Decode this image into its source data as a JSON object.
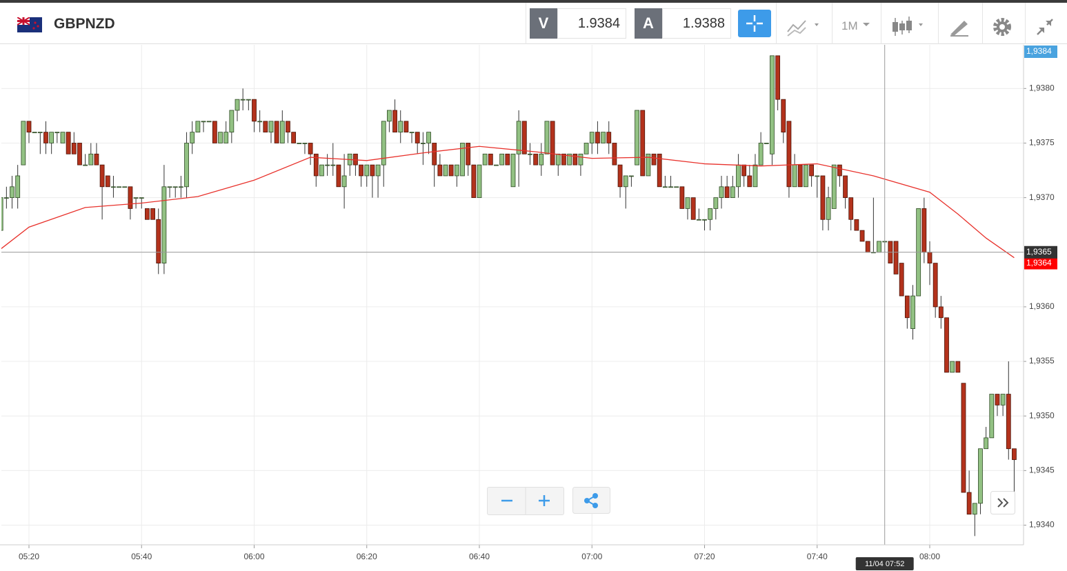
{
  "toolbar": {
    "symbol": "GBPNZD",
    "bid_label": "V",
    "bid": "1.9384",
    "ask_label": "A",
    "ask": "1.9388",
    "timeframe": "1M"
  },
  "chart_data": {
    "type": "candlestick",
    "x": [
      "05:15",
      "05:16",
      "05:17",
      "05:18",
      "05:19",
      "05:20",
      "05:21",
      "05:22",
      "05:23",
      "05:24",
      "05:25",
      "05:26",
      "05:27",
      "05:28",
      "05:29",
      "05:30",
      "05:31",
      "05:32",
      "05:33",
      "05:34",
      "05:35",
      "05:36",
      "05:37",
      "05:38",
      "05:39",
      "05:40",
      "05:41",
      "05:42",
      "05:43",
      "05:44",
      "05:45",
      "05:46",
      "05:47",
      "05:48",
      "05:49",
      "05:50",
      "05:51",
      "05:52",
      "05:53",
      "05:54",
      "05:55",
      "05:56",
      "05:57",
      "05:58",
      "05:59",
      "06:00",
      "06:01",
      "06:02",
      "06:03",
      "06:04",
      "06:05",
      "06:06",
      "06:07",
      "06:08",
      "06:09",
      "06:10",
      "06:11",
      "06:12",
      "06:13",
      "06:14",
      "06:15",
      "06:16",
      "06:17",
      "06:18",
      "06:19",
      "06:20",
      "06:21",
      "06:22",
      "06:23",
      "06:24",
      "06:25",
      "06:26",
      "06:27",
      "06:28",
      "06:29",
      "06:30",
      "06:31",
      "06:32",
      "06:33",
      "06:34",
      "06:35",
      "06:36",
      "06:37",
      "06:38",
      "06:39",
      "06:40",
      "06:41",
      "06:42",
      "06:43",
      "06:44",
      "06:45",
      "06:46",
      "06:47",
      "06:48",
      "06:49",
      "06:50",
      "06:51",
      "06:52",
      "06:53",
      "06:54",
      "06:55",
      "06:56",
      "06:57",
      "06:58",
      "06:59",
      "07:00",
      "07:01",
      "07:02",
      "07:03",
      "07:04",
      "07:05",
      "07:06",
      "07:07",
      "07:08",
      "07:09",
      "07:10",
      "07:11",
      "07:12",
      "07:13",
      "07:14",
      "07:15",
      "07:16",
      "07:17",
      "07:18",
      "07:19",
      "07:20",
      "07:21",
      "07:22",
      "07:23",
      "07:24",
      "07:25",
      "07:26",
      "07:27",
      "07:28",
      "07:29",
      "07:30",
      "07:31",
      "07:32",
      "07:33",
      "07:34",
      "07:35",
      "07:36",
      "07:37",
      "07:38",
      "07:39",
      "07:40",
      "07:41",
      "07:42",
      "07:43",
      "07:44",
      "07:45",
      "07:46",
      "07:47",
      "07:48",
      "07:49",
      "07:50",
      "07:51",
      "07:52",
      "07:53",
      "07:54",
      "07:55",
      "07:56",
      "07:57",
      "07:58",
      "07:59",
      "08:00",
      "08:01",
      "08:02",
      "08:03",
      "08:04",
      "08:05",
      "08:06",
      "08:07",
      "08:08",
      "08:09",
      "08:10",
      "08:11",
      "08:12",
      "08:13",
      "08:14",
      "08:15"
    ],
    "open": [
      1.9367,
      1.937,
      1.937,
      1.937,
      1.9373,
      1.9377,
      1.9376,
      1.9376,
      1.9376,
      1.9375,
      1.9376,
      1.9375,
      1.9376,
      1.9375,
      1.9375,
      1.9373,
      1.9373,
      1.9374,
      1.9373,
      1.9372,
      1.9371,
      1.9371,
      1.9371,
      1.9371,
      1.937,
      1.937,
      1.9369,
      1.9369,
      1.9368,
      1.9364,
      1.9371,
      1.9371,
      1.9371,
      1.9371,
      1.9375,
      1.9376,
      1.9377,
      1.9377,
      1.9377,
      1.9375,
      1.9375,
      1.9376,
      1.9378,
      1.9379,
      1.9379,
      1.9379,
      1.9377,
      1.9377,
      1.9376,
      1.9377,
      1.9375,
      1.9377,
      1.9376,
      1.9375,
      1.9375,
      1.9375,
      1.9374,
      1.9372,
      1.9373,
      1.9373,
      1.9373,
      1.9371,
      1.9373,
      1.9374,
      1.9373,
      1.9372,
      1.9373,
      1.9372,
      1.9373,
      1.9377,
      1.9378,
      1.9376,
      1.9377,
      1.9376,
      1.9376,
      1.9375,
      1.9375,
      1.9375,
      1.9373,
      1.9372,
      1.9373,
      1.9372,
      1.9372,
      1.9375,
      1.9373,
      1.937,
      1.9373,
      1.9374,
      1.9373,
      1.9373,
      1.9374,
      1.9371,
      1.9374,
      1.9377,
      1.9374,
      1.9374,
      1.9373,
      1.9374,
      1.9377,
      1.9373,
      1.9374,
      1.9373,
      1.9374,
      1.9373,
      1.9374,
      1.9375,
      1.9376,
      1.9375,
      1.9376,
      1.9375,
      1.9373,
      1.9371,
      1.9372,
      1.9373,
      1.9378,
      1.9372,
      1.9374,
      1.9374,
      1.9371,
      1.9371,
      1.9371,
      1.9371,
      1.9369,
      1.937,
      1.9368,
      1.9368,
      1.9368,
      1.9369,
      1.937,
      1.9371,
      1.937,
      1.9371,
      1.9373,
      1.9372,
      1.9371,
      1.9373,
      1.9375,
      1.9374,
      1.9383,
      1.9379,
      1.9377,
      1.9371,
      1.9373,
      1.9371,
      1.9373,
      1.9372,
      1.9372,
      1.9368,
      1.9369,
      1.9373,
      1.9372,
      1.937,
      1.9368,
      1.9367,
      1.9366,
      1.9365,
      1.9365,
      1.9366,
      1.9366,
      1.9366,
      1.9364,
      1.9361,
      1.9358,
      1.9361,
      1.9369,
      1.9365,
      1.9364,
      1.936,
      1.9359,
      1.9354,
      1.9355,
      1.9353,
      1.9343,
      1.9341,
      1.9342,
      1.9347,
      1.9348,
      1.9352,
      1.9351,
      1.9352,
      1.9347
    ],
    "high": [
      1.9371,
      1.9371,
      1.9372,
      1.9373,
      1.9377,
      1.9377,
      1.9376,
      1.9376,
      1.9377,
      1.9376,
      1.9376,
      1.9376,
      1.9376,
      1.9376,
      1.9375,
      1.9374,
      1.9375,
      1.9375,
      1.9373,
      1.9372,
      1.9372,
      1.9371,
      1.9371,
      1.9371,
      1.937,
      1.937,
      1.9369,
      1.9369,
      1.9369,
      1.9373,
      1.9371,
      1.9371,
      1.9372,
      1.9376,
      1.9377,
      1.9377,
      1.9377,
      1.9377,
      1.9377,
      1.9376,
      1.9377,
      1.9378,
      1.9379,
      1.938,
      1.9379,
      1.9379,
      1.9378,
      1.9377,
      1.9377,
      1.9377,
      1.9378,
      1.9377,
      1.9376,
      1.9375,
      1.9375,
      1.9375,
      1.9374,
      1.9373,
      1.9374,
      1.9375,
      1.9373,
      1.9374,
      1.9374,
      1.9374,
      1.9373,
      1.9373,
      1.9373,
      1.9373,
      1.9377,
      1.9378,
      1.9379,
      1.9378,
      1.9377,
      1.9376,
      1.9376,
      1.9376,
      1.9376,
      1.9375,
      1.9374,
      1.9373,
      1.9373,
      1.9373,
      1.9375,
      1.9375,
      1.9373,
      1.9373,
      1.9374,
      1.9374,
      1.9373,
      1.9374,
      1.9374,
      1.9374,
      1.9378,
      1.9377,
      1.9375,
      1.9374,
      1.9375,
      1.9377,
      1.9377,
      1.9374,
      1.9374,
      1.9374,
      1.9374,
      1.9374,
      1.9375,
      1.9376,
      1.9377,
      1.9376,
      1.9377,
      1.9375,
      1.9373,
      1.9372,
      1.9372,
      1.9378,
      1.9378,
      1.9374,
      1.9374,
      1.9374,
      1.9372,
      1.9372,
      1.9371,
      1.9371,
      1.937,
      1.937,
      1.9369,
      1.9368,
      1.9369,
      1.937,
      1.9372,
      1.9372,
      1.9372,
      1.9374,
      1.9373,
      1.9373,
      1.9374,
      1.9376,
      1.9375,
      1.9383,
      1.9383,
      1.9379,
      1.9377,
      1.9374,
      1.9373,
      1.9373,
      1.9373,
      1.9372,
      1.9372,
      1.9371,
      1.9373,
      1.9373,
      1.9372,
      1.937,
      1.9368,
      1.9367,
      1.9366,
      1.937,
      1.9366,
      1.9366,
      1.9366,
      1.9366,
      1.9364,
      1.9361,
      1.9362,
      1.9369,
      1.937,
      1.9366,
      1.9364,
      1.9361,
      1.9359,
      1.9355,
      1.9355,
      1.9353,
      1.9345,
      1.9342,
      1.9347,
      1.9349,
      1.9352,
      1.9352,
      1.9352,
      1.9355,
      1.9347
    ],
    "low": [
      1.9366,
      1.9369,
      1.9369,
      1.9369,
      1.9373,
      1.9375,
      1.9376,
      1.9374,
      1.9374,
      1.9374,
      1.9375,
      1.9375,
      1.9374,
      1.9374,
      1.9373,
      1.9373,
      1.9373,
      1.9373,
      1.9368,
      1.9371,
      1.937,
      1.9371,
      1.9371,
      1.9368,
      1.9369,
      1.9369,
      1.9368,
      1.9368,
      1.9363,
      1.9363,
      1.937,
      1.937,
      1.937,
      1.937,
      1.9374,
      1.9376,
      1.9376,
      1.9377,
      1.9375,
      1.9375,
      1.9375,
      1.9375,
      1.9377,
      1.9378,
      1.9378,
      1.9376,
      1.9376,
      1.9376,
      1.9375,
      1.9375,
      1.9375,
      1.9375,
      1.9375,
      1.9375,
      1.9374,
      1.9373,
      1.9371,
      1.9372,
      1.9372,
      1.9372,
      1.9371,
      1.9369,
      1.9372,
      1.9372,
      1.9371,
      1.9371,
      1.937,
      1.937,
      1.9371,
      1.9376,
      1.9376,
      1.9375,
      1.9376,
      1.9375,
      1.9374,
      1.9373,
      1.9374,
      1.9371,
      1.9372,
      1.9372,
      1.9372,
      1.9371,
      1.9372,
      1.9372,
      1.937,
      1.937,
      1.9373,
      1.9373,
      1.9373,
      1.9373,
      1.9373,
      1.9371,
      1.9371,
      1.9374,
      1.9373,
      1.9373,
      1.9372,
      1.9374,
      1.9373,
      1.9372,
      1.9373,
      1.9373,
      1.9373,
      1.9372,
      1.9374,
      1.9374,
      1.9374,
      1.9375,
      1.9374,
      1.9373,
      1.937,
      1.9369,
      1.9371,
      1.9373,
      1.9372,
      1.9372,
      1.9373,
      1.9371,
      1.9371,
      1.9371,
      1.9371,
      1.9369,
      1.9368,
      1.9368,
      1.9368,
      1.9367,
      1.9367,
      1.9368,
      1.9369,
      1.937,
      1.937,
      1.937,
      1.9371,
      1.9371,
      1.9371,
      1.9373,
      1.9375,
      1.9373,
      1.9378,
      1.9375,
      1.937,
      1.9371,
      1.9371,
      1.9371,
      1.9371,
      1.937,
      1.9367,
      1.9367,
      1.9369,
      1.9371,
      1.9369,
      1.9367,
      1.9367,
      1.9366,
      1.9365,
      1.9365,
      1.9365,
      1.9365,
      1.9364,
      1.9363,
      1.9361,
      1.9358,
      1.9357,
      1.9361,
      1.9364,
      1.9362,
      1.9359,
      1.9358,
      1.9354,
      1.9354,
      1.9354,
      1.9343,
      1.9341,
      1.9339,
      1.9341,
      1.9347,
      1.9348,
      1.935,
      1.935,
      1.9346,
      1.9343
    ],
    "close": [
      1.937,
      1.937,
      1.9371,
      1.9372,
      1.9377,
      1.9376,
      1.9376,
      1.9376,
      1.9375,
      1.9376,
      1.9376,
      1.9376,
      1.9374,
      1.9374,
      1.9373,
      1.9373,
      1.9374,
      1.9373,
      1.9371,
      1.9371,
      1.9371,
      1.9371,
      1.9371,
      1.9369,
      1.937,
      1.937,
      1.9368,
      1.9368,
      1.9364,
      1.9371,
      1.9371,
      1.9371,
      1.9371,
      1.9375,
      1.9376,
      1.9377,
      1.9377,
      1.9377,
      1.9375,
      1.9376,
      1.9376,
      1.9378,
      1.9379,
      1.9379,
      1.9379,
      1.9377,
      1.9377,
      1.9376,
      1.9377,
      1.9375,
      1.9377,
      1.9376,
      1.9375,
      1.9375,
      1.9375,
      1.9374,
      1.9372,
      1.9373,
      1.9373,
      1.9373,
      1.9371,
      1.9372,
      1.9374,
      1.9373,
      1.9372,
      1.9373,
      1.9372,
      1.9373,
      1.9377,
      1.9378,
      1.9376,
      1.9377,
      1.9376,
      1.9376,
      1.9375,
      1.9375,
      1.9376,
      1.9373,
      1.9372,
      1.9373,
      1.9372,
      1.9373,
      1.9375,
      1.9373,
      1.937,
      1.9373,
      1.9374,
      1.9373,
      1.9373,
      1.9374,
      1.9373,
      1.9374,
      1.9377,
      1.9374,
      1.9374,
      1.9373,
      1.9374,
      1.9377,
      1.9373,
      1.9374,
      1.9373,
      1.9374,
      1.9373,
      1.9374,
      1.9375,
      1.9376,
      1.9375,
      1.9376,
      1.9375,
      1.9373,
      1.9371,
      1.9372,
      1.9372,
      1.9378,
      1.9372,
      1.9374,
      1.9373,
      1.9371,
      1.9371,
      1.9371,
      1.9371,
      1.9369,
      1.937,
      1.9368,
      1.9368,
      1.9368,
      1.9369,
      1.937,
      1.9371,
      1.937,
      1.9371,
      1.9373,
      1.9372,
      1.9371,
      1.9373,
      1.9375,
      1.9375,
      1.9383,
      1.9379,
      1.9376,
      1.9371,
      1.9373,
      1.9371,
      1.9373,
      1.9372,
      1.9372,
      1.9368,
      1.937,
      1.9373,
      1.9372,
      1.937,
      1.9368,
      1.9367,
      1.9366,
      1.9365,
      1.9365,
      1.9366,
      1.9366,
      1.9364,
      1.9363,
      1.9361,
      1.9359,
      1.9361,
      1.9369,
      1.9365,
      1.9364,
      1.936,
      1.9359,
      1.9354,
      1.9355,
      1.9354,
      1.9343,
      1.9341,
      1.9342,
      1.9347,
      1.9348,
      1.9352,
      1.9351,
      1.9352,
      1.9347,
      1.9346
    ],
    "up_color": "#92c183",
    "down_color": "#b3321c",
    "ma": {
      "x": [
        "05:15",
        "05:20",
        "05:30",
        "05:40",
        "05:50",
        "06:00",
        "06:10",
        "06:20",
        "06:30",
        "06:40",
        "06:50",
        "07:00",
        "07:10",
        "07:20",
        "07:30",
        "07:40",
        "07:50",
        "08:00",
        "08:05",
        "08:10",
        "08:15"
      ],
      "values": [
        1.93653,
        1.93673,
        1.93691,
        1.93695,
        1.93701,
        1.93716,
        1.93737,
        1.93734,
        1.93741,
        1.93747,
        1.93742,
        1.93736,
        1.93737,
        1.93731,
        1.93729,
        1.93731,
        1.9372,
        1.93705,
        1.93685,
        1.93663,
        1.93645
      ],
      "color": "#e8312b"
    },
    "ylim": [
      1.93382,
      1.9384
    ],
    "yticks": [
      {
        "value": 1.934,
        "label": "1,9340"
      },
      {
        "value": 1.9345,
        "label": "1,9345"
      },
      {
        "value": 1.935,
        "label": "1,9350"
      },
      {
        "value": 1.9355,
        "label": "1,9355"
      },
      {
        "value": 1.936,
        "label": "1,9360"
      },
      {
        "value": 1.9365,
        "label": "1,9365"
      },
      {
        "value": 1.937,
        "label": "1,9370"
      },
      {
        "value": 1.9375,
        "label": "1,9375"
      },
      {
        "value": 1.938,
        "label": "1,9380"
      }
    ],
    "xticks": [
      "05:20",
      "05:40",
      "06:00",
      "06:20",
      "06:40",
      "07:00",
      "07:20",
      "07:40",
      "08:00"
    ],
    "grid": true,
    "price_markers": [
      {
        "value": 1.9384,
        "label": "1,9384",
        "color": "#4aa3df"
      },
      {
        "value": 1.9364,
        "label": "1,9364",
        "color": "#ff0000"
      }
    ],
    "crosshair": {
      "x": "07:52",
      "label": "11/04 07:52",
      "y": 1.9365,
      "y_label": "1,9365"
    }
  }
}
